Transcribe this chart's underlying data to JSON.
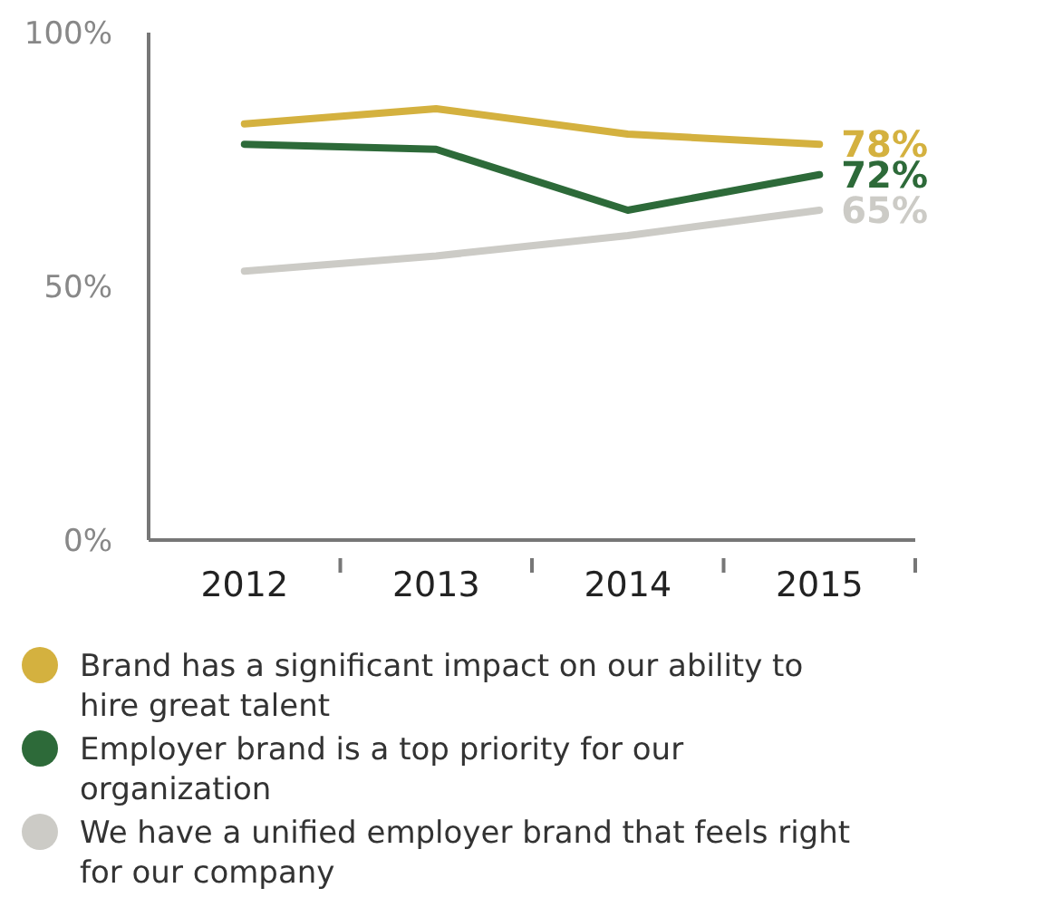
{
  "chart_data": {
    "type": "line",
    "categories": [
      "2012",
      "2013",
      "2014",
      "2015"
    ],
    "series": [
      {
        "name": "Brand has a significant impact on our ability to hire great talent",
        "color": "#d4b13f",
        "values": [
          82,
          85,
          80,
          78
        ],
        "value_labels": [
          null,
          null,
          null,
          "78%"
        ]
      },
      {
        "name": "Employer brand is a top priority for our organization",
        "color": "#2d6a39",
        "values": [
          78,
          77,
          65,
          72
        ],
        "value_labels": [
          null,
          null,
          null,
          "72%"
        ]
      },
      {
        "name": "We have a unified employer brand that feels right for our company",
        "color": "#cccbc6",
        "values": [
          53,
          56,
          60,
          65
        ],
        "value_labels": [
          null,
          null,
          null,
          "65%"
        ]
      }
    ],
    "ylim": [
      0,
      100
    ],
    "yticks": [
      {
        "value": 0,
        "label": "0%"
      },
      {
        "value": 50,
        "label": "50%"
      },
      {
        "value": 100,
        "label": "100%"
      }
    ],
    "grid": false,
    "legend": "bottom",
    "marker": "none",
    "line_style": "solid"
  }
}
